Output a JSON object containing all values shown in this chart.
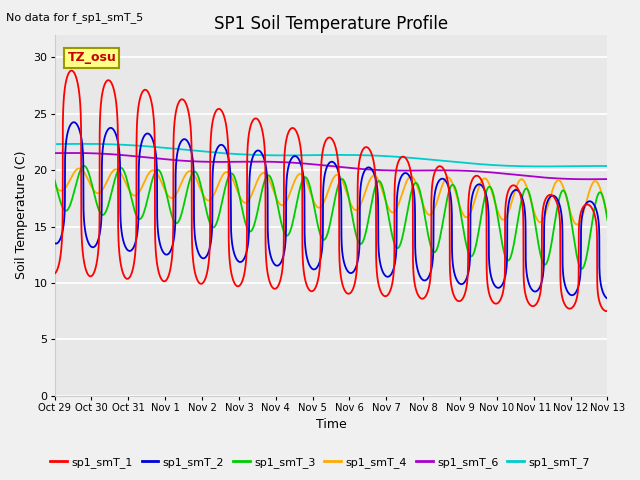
{
  "title": "SP1 Soil Temperature Profile",
  "subtitle": "No data for f_sp1_smT_5",
  "xlabel": "Time",
  "ylabel": "Soil Temperature (C)",
  "ylim": [
    0,
    32
  ],
  "yticks": [
    0,
    5,
    10,
    15,
    20,
    25,
    30
  ],
  "xtick_labels": [
    "Oct 29",
    "Oct 30",
    "Oct 31",
    "Nov 1",
    "Nov 2",
    "Nov 3",
    "Nov 4",
    "Nov 5",
    "Nov 6",
    "Nov 7",
    "Nov 8",
    "Nov 9",
    "Nov 10",
    "Nov 11",
    "Nov 12",
    "Nov 13"
  ],
  "annotation_text": "TZ_osu",
  "series_colors": {
    "sp1_smT_1": "#ff0000",
    "sp1_smT_2": "#0000dd",
    "sp1_smT_3": "#00cc00",
    "sp1_smT_4": "#ffaa00",
    "sp1_smT_6": "#aa00cc",
    "sp1_smT_7": "#00cccc"
  },
  "fig_bg": "#f0f0f0",
  "plot_bg": "#e8e8e8",
  "grid_color": "#ffffff",
  "spine_color": "#cccccc"
}
